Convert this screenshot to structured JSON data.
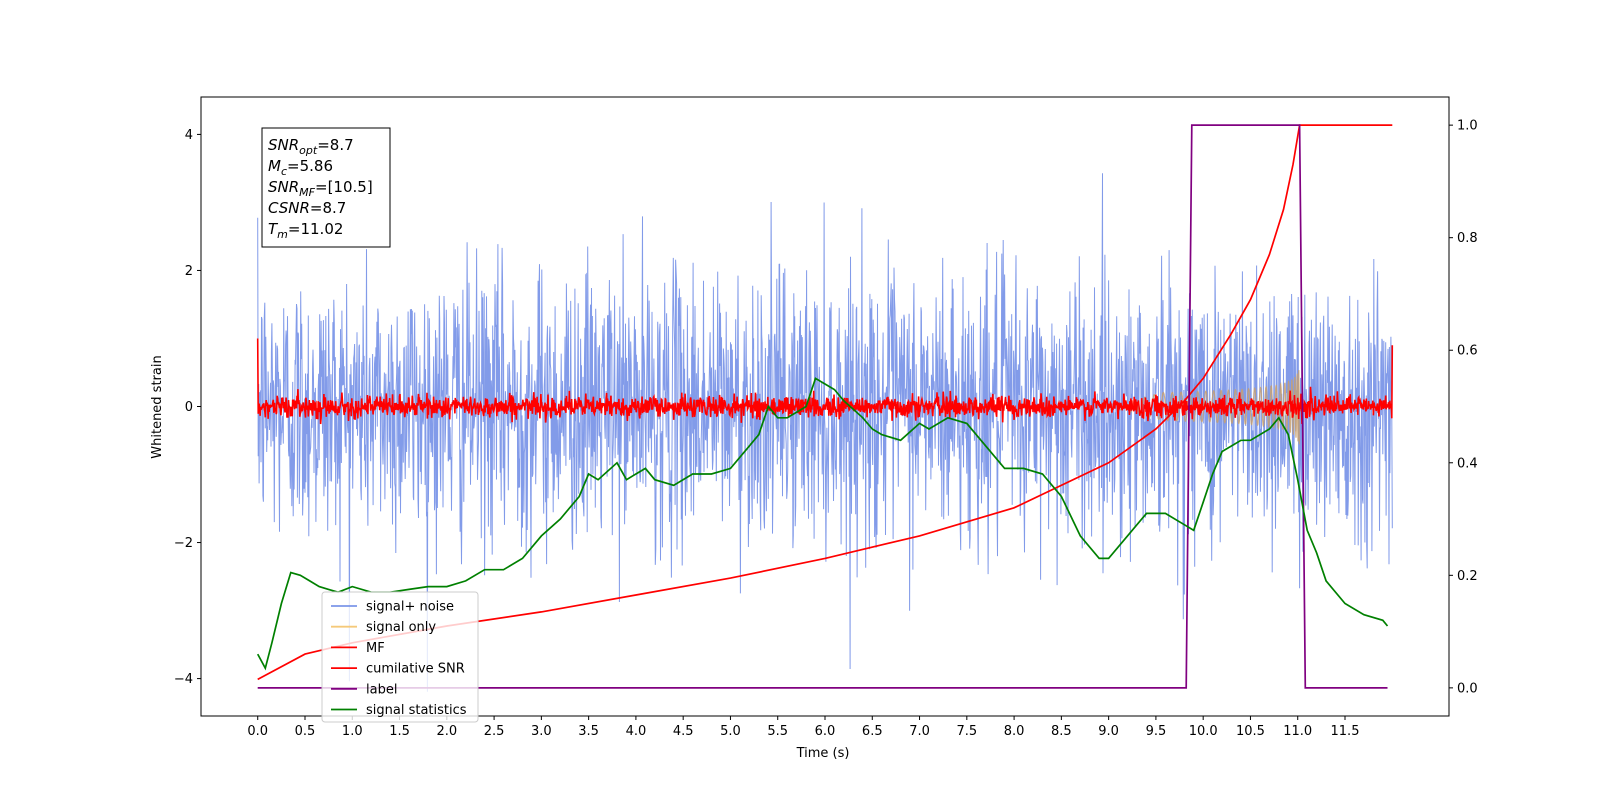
{
  "chart_data": {
    "type": "line",
    "xlabel": "Time (s)",
    "ylabel": "Whitened strain",
    "xlim": [
      -0.6,
      12.6
    ],
    "ylim": [
      -4.55,
      4.55
    ],
    "y2lim": [
      -0.05,
      1.05
    ],
    "xticks": [
      "0.0",
      "0.5",
      "1.0",
      "1.5",
      "2.0",
      "2.5",
      "3.0",
      "3.5",
      "4.0",
      "4.5",
      "5.0",
      "5.5",
      "6.0",
      "6.5",
      "7.0",
      "7.5",
      "8.0",
      "8.5",
      "9.0",
      "9.5",
      "10.0",
      "10.5",
      "11.0",
      "11.5"
    ],
    "yticks": [
      "−4",
      "−2",
      "0",
      "2",
      "4"
    ],
    "y2ticks": [
      "0.0",
      "0.2",
      "0.4",
      "0.6",
      "0.8",
      "1.0"
    ],
    "grid": false,
    "legend_position": "lower-left",
    "annotation": {
      "lines": [
        {
          "label": "SNR",
          "sub": "opt",
          "value": "=8.7"
        },
        {
          "label": "M",
          "sub": "c",
          "value": "=5.86"
        },
        {
          "label": "SNR",
          "sub": "MF",
          "value": "=[10.5]"
        },
        {
          "label": "CSNR",
          "sub": "",
          "value": "=8.7"
        },
        {
          "label": "T",
          "sub": "m",
          "value": "=11.02"
        }
      ]
    },
    "series": [
      {
        "name": "signal+ noise",
        "color": "#7b96e8",
        "axis": "left",
        "kind": "noise",
        "sigma": 1.0,
        "x_range": [
          0,
          12
        ]
      },
      {
        "name": "signal only",
        "color": "#f5c97a",
        "axis": "left",
        "kind": "chirp",
        "x_range": [
          9.0,
          11.02
        ],
        "end_amplitude": 0.6
      },
      {
        "name": "MF",
        "color": "#ff0000",
        "axis": "left",
        "kind": "noise",
        "sigma": 0.08,
        "x_range": [
          0,
          12
        ],
        "start_value": 1.0,
        "end_value": 0.9
      },
      {
        "name": "cumilative SNR",
        "color": "#ff0000",
        "axis": "right",
        "x": [
          0,
          0.5,
          1.0,
          2.0,
          3.0,
          4.0,
          5.0,
          6.0,
          7.0,
          8.0,
          9.0,
          9.5,
          9.8,
          10.0,
          10.3,
          10.5,
          10.7,
          10.85,
          10.95,
          11.0,
          11.02,
          12.0
        ],
        "values": [
          0.015,
          0.06,
          0.08,
          0.11,
          0.135,
          0.165,
          0.195,
          0.23,
          0.27,
          0.32,
          0.4,
          0.46,
          0.51,
          0.55,
          0.63,
          0.69,
          0.77,
          0.85,
          0.93,
          0.98,
          1.0,
          1.0
        ]
      },
      {
        "name": "label",
        "color": "#800080",
        "axis": "right",
        "x": [
          0,
          9.82,
          9.88,
          11.02,
          11.08,
          11.95
        ],
        "values": [
          0,
          0,
          1,
          1,
          0,
          0
        ]
      },
      {
        "name": "signal statistics",
        "color": "#008000",
        "axis": "right",
        "x": [
          0.0,
          0.08,
          0.15,
          0.25,
          0.35,
          0.45,
          0.55,
          0.65,
          0.75,
          0.85,
          1.0,
          1.2,
          1.4,
          1.6,
          1.8,
          2.0,
          2.2,
          2.4,
          2.6,
          2.8,
          3.0,
          3.2,
          3.4,
          3.5,
          3.6,
          3.8,
          3.9,
          4.0,
          4.1,
          4.2,
          4.4,
          4.6,
          4.8,
          5.0,
          5.2,
          5.3,
          5.4,
          5.5,
          5.6,
          5.8,
          5.9,
          6.0,
          6.1,
          6.2,
          6.4,
          6.5,
          6.6,
          6.8,
          7.0,
          7.1,
          7.3,
          7.5,
          7.7,
          7.9,
          8.1,
          8.3,
          8.5,
          8.7,
          8.9,
          9.0,
          9.2,
          9.4,
          9.6,
          9.8,
          9.9,
          10.0,
          10.1,
          10.2,
          10.4,
          10.5,
          10.7,
          10.8,
          10.9,
          11.0,
          11.1,
          11.2,
          11.3,
          11.5,
          11.7,
          11.9,
          11.95
        ],
        "values": [
          0.06,
          0.035,
          0.08,
          0.15,
          0.205,
          0.2,
          0.19,
          0.18,
          0.175,
          0.17,
          0.18,
          0.17,
          0.17,
          0.175,
          0.18,
          0.18,
          0.19,
          0.21,
          0.21,
          0.23,
          0.27,
          0.3,
          0.34,
          0.38,
          0.37,
          0.4,
          0.37,
          0.38,
          0.39,
          0.37,
          0.36,
          0.38,
          0.38,
          0.39,
          0.43,
          0.45,
          0.5,
          0.48,
          0.48,
          0.5,
          0.55,
          0.54,
          0.53,
          0.51,
          0.48,
          0.46,
          0.45,
          0.44,
          0.47,
          0.46,
          0.48,
          0.47,
          0.43,
          0.39,
          0.39,
          0.38,
          0.34,
          0.27,
          0.23,
          0.23,
          0.27,
          0.31,
          0.31,
          0.29,
          0.28,
          0.33,
          0.38,
          0.42,
          0.44,
          0.44,
          0.46,
          0.48,
          0.45,
          0.37,
          0.28,
          0.24,
          0.19,
          0.15,
          0.13,
          0.12,
          0.11
        ]
      }
    ]
  }
}
